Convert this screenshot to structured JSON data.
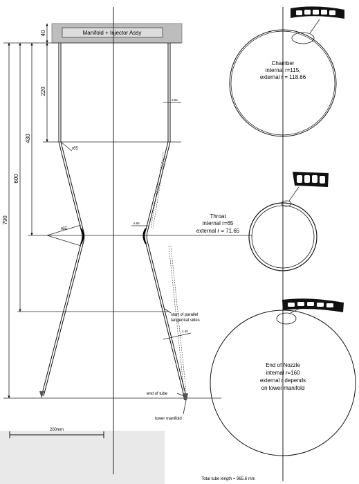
{
  "header": {
    "manifold_label": "Manifold + Injector Assy"
  },
  "dims": {
    "d40": "40",
    "d220": "220",
    "d430": "430",
    "d600": "600",
    "d790": "790",
    "r65_chamber": "r65",
    "r65_throat": "r65",
    "wall_top": "3.66",
    "wall_throat": "6.65",
    "wall_nozzle": "4.45"
  },
  "chamber": {
    "title": "Chamber",
    "internal": "internal r=115,",
    "external": "external r = 118.66"
  },
  "throat": {
    "title": "Throat",
    "internal": "internal r=65",
    "external": "external r = 71.65"
  },
  "nozzle": {
    "title": "End of Nozzle",
    "internal": "internal r=160",
    "external1": "external r depends",
    "external2": "on lower manifold"
  },
  "notes": {
    "parallel1": "start of parallel",
    "parallel2": "tangential sides",
    "end_tube": "end of tube",
    "lower_manifold": "lower manifold"
  },
  "scale": {
    "label": "200mm"
  },
  "footer": {
    "total": "Total tube length = 965.6 mm"
  }
}
